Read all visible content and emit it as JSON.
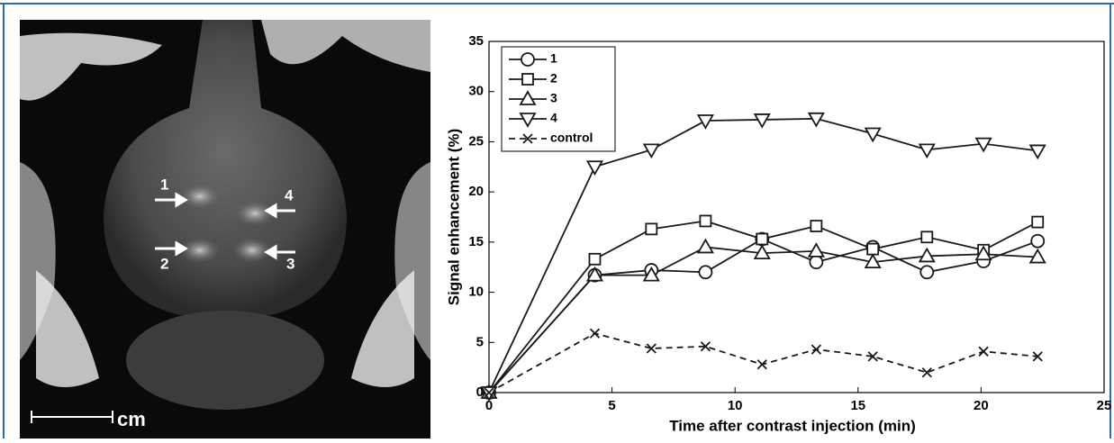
{
  "chart_data": {
    "type": "line",
    "xlabel": "Time after contrast injection (min)",
    "ylabel": "Signal enhancement (%)",
    "x": [
      0,
      4.3,
      6.6,
      8.8,
      11.1,
      13.3,
      15.6,
      17.8,
      20.1,
      22.3
    ],
    "series": [
      {
        "name": "1",
        "color": "#1a1a1a",
        "marker": "circle",
        "linestyle": "solid",
        "values": [
          0,
          11.7,
          12.2,
          12.0,
          15.3,
          13.0,
          14.5,
          12.0,
          13.1,
          15.1
        ]
      },
      {
        "name": "2",
        "color": "#1a1a1a",
        "marker": "square",
        "linestyle": "solid",
        "values": [
          0,
          13.3,
          16.3,
          17.1,
          15.3,
          16.6,
          14.3,
          15.5,
          14.2,
          17.0
        ]
      },
      {
        "name": "3",
        "color": "#1a1a1a",
        "marker": "triangle-up",
        "linestyle": "solid",
        "values": [
          0,
          11.7,
          11.7,
          14.5,
          13.9,
          14.1,
          13.0,
          13.6,
          13.8,
          13.5
        ]
      },
      {
        "name": "4",
        "color": "#1a1a1a",
        "marker": "triangle-down",
        "linestyle": "solid",
        "values": [
          0,
          22.5,
          24.2,
          27.1,
          27.2,
          27.3,
          25.8,
          24.2,
          24.8,
          24.1
        ]
      },
      {
        "name": "control",
        "color": "#1a1a1a",
        "marker": "x",
        "linestyle": "dashed",
        "values": [
          0,
          5.9,
          4.4,
          4.6,
          2.8,
          4.3,
          3.6,
          2.0,
          4.1,
          3.6
        ]
      }
    ],
    "xlim": [
      0,
      25
    ],
    "xticks": [
      0,
      5,
      10,
      15,
      20,
      25
    ],
    "ylim": [
      0,
      35
    ],
    "yticks": [
      0,
      5,
      10,
      15,
      20,
      25,
      30,
      35
    ],
    "grid": false,
    "legend": "upper left"
  },
  "image": {
    "arrow_labels": [
      "1",
      "2",
      "3",
      "4"
    ],
    "scale_label": "cm"
  }
}
